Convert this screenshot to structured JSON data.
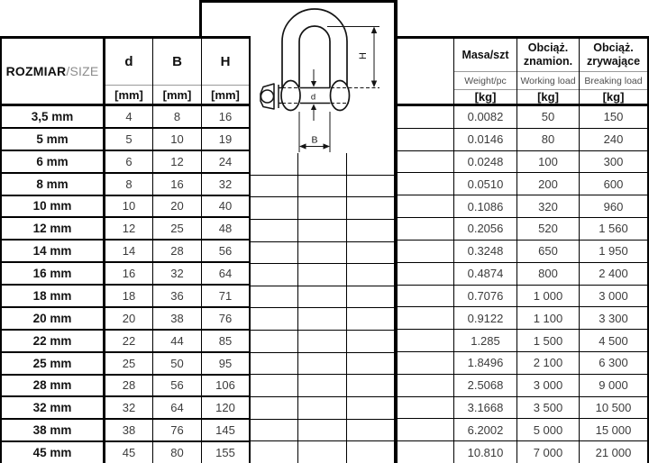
{
  "colors": {
    "line": "#000000",
    "light_line": "#9a9a9a",
    "thick_divider": "#000000",
    "size_suffix": "#8c8c8c"
  },
  "left_header": {
    "size_bold": "ROZMIAR",
    "size_light": "/SIZE",
    "cols": [
      {
        "label": "d",
        "unit": "[mm]"
      },
      {
        "label": "B",
        "unit": "[mm]"
      },
      {
        "label": "H",
        "unit": "[mm]"
      }
    ]
  },
  "right_header": {
    "cols": [
      {
        "pl1": "Masa/szt",
        "pl2": "",
        "en": "Weight/pc",
        "unit": "[kg]"
      },
      {
        "pl1": "Obciąż.",
        "pl2": "znamion.",
        "en": "Working load",
        "unit": "[kg]"
      },
      {
        "pl1": "Obciąż.",
        "pl2": "zrywające",
        "en": "Breaking load",
        "unit": "[kg]"
      }
    ]
  },
  "drawing": {
    "labels": {
      "h": "H",
      "b": "B",
      "d": "d"
    }
  },
  "rows": [
    {
      "size": "3,5 mm",
      "d": "4",
      "b": "8",
      "h": "16",
      "weight": "0.0082",
      "working": "50",
      "breaking": "150"
    },
    {
      "size": "5 mm",
      "d": "5",
      "b": "10",
      "h": "19",
      "weight": "0.0146",
      "working": "80",
      "breaking": "240"
    },
    {
      "size": "6 mm",
      "d": "6",
      "b": "12",
      "h": "24",
      "weight": "0.0248",
      "working": "100",
      "breaking": "300"
    },
    {
      "size": "8 mm",
      "d": "8",
      "b": "16",
      "h": "32",
      "weight": "0.0510",
      "working": "200",
      "breaking": "600"
    },
    {
      "size": "10 mm",
      "d": "10",
      "b": "20",
      "h": "40",
      "weight": "0.1086",
      "working": "320",
      "breaking": "960"
    },
    {
      "size": "12 mm",
      "d": "12",
      "b": "25",
      "h": "48",
      "weight": "0.2056",
      "working": "520",
      "breaking": "1 560"
    },
    {
      "size": "14 mm",
      "d": "14",
      "b": "28",
      "h": "56",
      "weight": "0.3248",
      "working": "650",
      "breaking": "1 950"
    },
    {
      "size": "16 mm",
      "d": "16",
      "b": "32",
      "h": "64",
      "weight": "0.4874",
      "working": "800",
      "breaking": "2 400"
    },
    {
      "size": "18 mm",
      "d": "18",
      "b": "36",
      "h": "71",
      "weight": "0.7076",
      "working": "1 000",
      "breaking": "3 000"
    },
    {
      "size": "20 mm",
      "d": "20",
      "b": "38",
      "h": "76",
      "weight": "0.9122",
      "working": "1 100",
      "breaking": "3 300"
    },
    {
      "size": "22 mm",
      "d": "22",
      "b": "44",
      "h": "85",
      "weight": "1.285",
      "working": "1 500",
      "breaking": "4 500"
    },
    {
      "size": "25 mm",
      "d": "25",
      "b": "50",
      "h": "95",
      "weight": "1.8496",
      "working": "2 100",
      "breaking": "6 300"
    },
    {
      "size": "28 mm",
      "d": "28",
      "b": "56",
      "h": "106",
      "weight": "2.5068",
      "working": "3 000",
      "breaking": "9 000"
    },
    {
      "size": "32 mm",
      "d": "32",
      "b": "64",
      "h": "120",
      "weight": "3.1668",
      "working": "3 500",
      "breaking": "10 500"
    },
    {
      "size": "38 mm",
      "d": "38",
      "b": "76",
      "h": "145",
      "weight": "6.2002",
      "working": "5 000",
      "breaking": "15 000"
    },
    {
      "size": "45 mm",
      "d": "45",
      "b": "80",
      "h": "155",
      "weight": "10.810",
      "working": "7 000",
      "breaking": "21 000"
    }
  ]
}
